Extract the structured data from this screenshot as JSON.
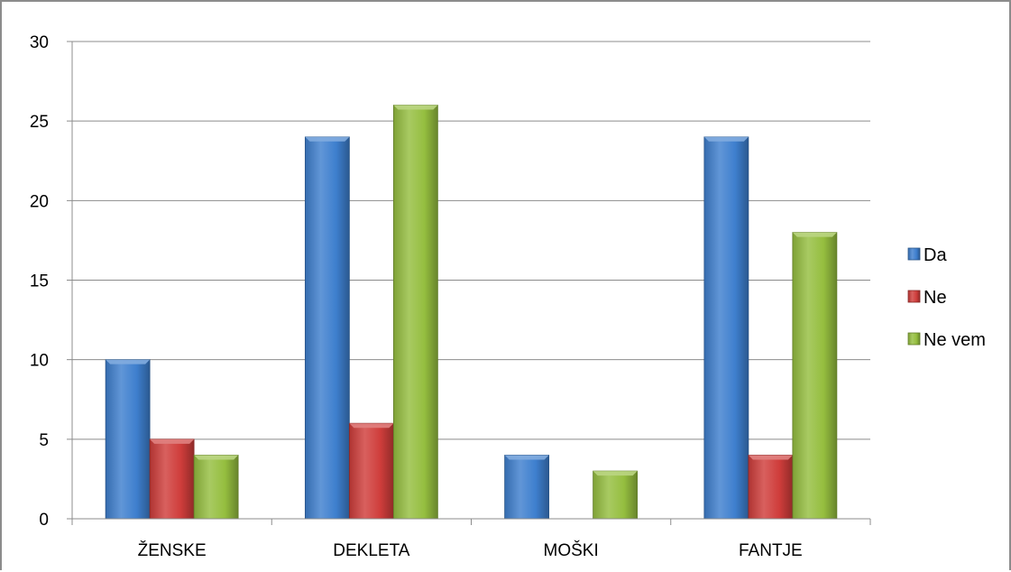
{
  "chart_data": {
    "type": "bar",
    "categories": [
      "ŽENSKE",
      "DEKLETA",
      "MOŠKI",
      "FANTJE"
    ],
    "series": [
      {
        "name": "Da",
        "values": [
          10,
          24,
          4,
          24
        ],
        "color": "#3e7fce"
      },
      {
        "name": "Ne",
        "values": [
          5,
          6,
          0,
          4
        ],
        "color": "#cf3d3b"
      },
      {
        "name": "Ne vem",
        "values": [
          4,
          26,
          3,
          18
        ],
        "color": "#95be3f"
      }
    ],
    "ylim": [
      0,
      30
    ],
    "yticks": [
      0,
      5,
      10,
      15,
      20,
      25,
      30
    ],
    "grid": true,
    "legend": "right"
  }
}
